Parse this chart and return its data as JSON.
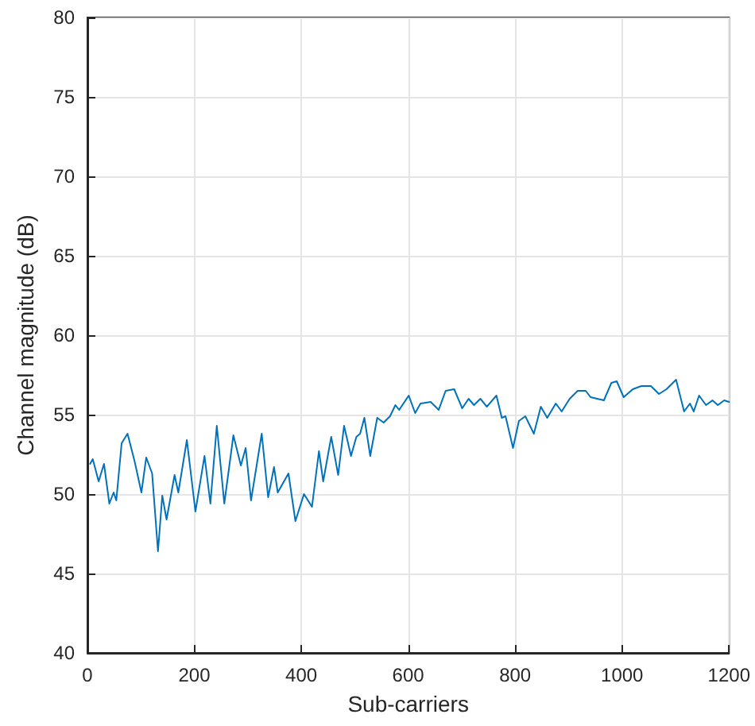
{
  "chart_data": {
    "type": "line",
    "xlabel": "Sub-carriers",
    "ylabel": "Channel magnitude (dB)",
    "xlim": [
      0,
      1200
    ],
    "ylim": [
      40,
      80
    ],
    "xticks": [
      0,
      200,
      400,
      600,
      800,
      1000,
      1200
    ],
    "yticks": [
      40,
      45,
      50,
      55,
      60,
      65,
      70,
      75,
      80
    ],
    "grid": true,
    "marker": "none",
    "line_style": "solid",
    "series": [
      {
        "color": "#0072bd",
        "x": [
          5,
          10,
          21,
          31,
          41,
          49,
          54,
          64,
          75,
          88,
          101,
          110,
          121,
          132,
          140,
          148,
          163,
          170,
          186,
          202,
          219,
          230,
          242,
          256,
          273,
          287,
          296,
          306,
          326,
          338,
          349,
          356,
          376,
          389,
          405,
          420,
          433,
          441,
          456,
          469,
          480,
          493,
          503,
          510,
          518,
          529,
          542,
          554,
          566,
          576,
          583,
          601,
          613,
          623,
          642,
          657,
          670,
          686,
          701,
          713,
          723,
          735,
          747,
          765,
          775,
          782,
          796,
          807,
          819,
          835,
          848,
          860,
          876,
          887,
          902,
          917,
          932,
          941,
          966,
          980,
          990,
          1003,
          1020,
          1036,
          1054,
          1069,
          1083,
          1101,
          1116,
          1127,
          1134,
          1144,
          1157,
          1169,
          1179,
          1191,
          1200
        ],
        "values": [
          51.9,
          52.2,
          50.8,
          51.9,
          49.4,
          50.1,
          49.6,
          53.2,
          53.8,
          52.1,
          50.1,
          52.3,
          51.3,
          46.4,
          49.9,
          48.4,
          51.2,
          50.1,
          53.4,
          48.9,
          52.4,
          49.4,
          54.3,
          49.4,
          53.7,
          51.8,
          52.9,
          49.6,
          53.8,
          49.8,
          51.7,
          50.1,
          51.3,
          48.3,
          50.0,
          49.2,
          52.7,
          50.8,
          53.6,
          51.2,
          54.3,
          52.4,
          53.6,
          53.8,
          54.8,
          52.4,
          54.8,
          54.5,
          54.9,
          55.6,
          55.3,
          56.2,
          55.1,
          55.7,
          55.8,
          55.3,
          56.5,
          56.6,
          55.4,
          56.0,
          55.6,
          56.0,
          55.5,
          56.2,
          54.8,
          54.9,
          52.9,
          54.6,
          54.9,
          53.8,
          55.5,
          54.8,
          55.7,
          55.2,
          56.0,
          56.5,
          56.5,
          56.1,
          55.9,
          57.0,
          57.1,
          56.1,
          56.6,
          56.8,
          56.8,
          56.3,
          56.6,
          57.2,
          55.2,
          55.7,
          55.2,
          56.2,
          55.6,
          55.9,
          55.6,
          55.9,
          55.8
        ]
      }
    ]
  }
}
